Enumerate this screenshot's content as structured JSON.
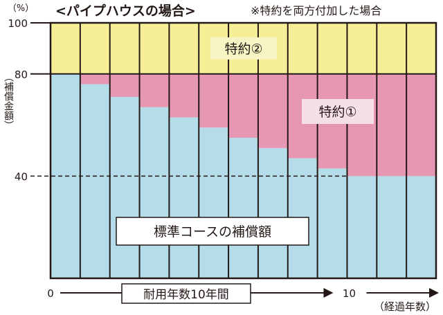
{
  "header": {
    "title": "<パイプハウスの場合>",
    "note": "※特約を両方付加した場合"
  },
  "colors": {
    "standard": "#b5dde9",
    "rider1": "#e597b4",
    "rider2": "#f6ef98",
    "rider1_label_bg": "#f6dfe8",
    "rider2_label_bg": "#f8f4c4",
    "line": "#231815"
  },
  "chart_data": {
    "type": "bar",
    "stacked": true,
    "x": [
      0,
      1,
      2,
      3,
      4,
      5,
      6,
      7,
      8,
      9,
      10,
      11,
      12
    ],
    "series": [
      {
        "name": "標準コースの補償額",
        "values": [
          80,
          76,
          71,
          67,
          63,
          59,
          55,
          51,
          47,
          43,
          40,
          40,
          40
        ]
      },
      {
        "name": "特約①",
        "values": [
          0,
          4,
          9,
          13,
          17,
          21,
          25,
          29,
          33,
          37,
          40,
          40,
          40
        ]
      },
      {
        "name": "特約②",
        "values": [
          20,
          20,
          20,
          20,
          20,
          20,
          20,
          20,
          20,
          20,
          20,
          20,
          20
        ]
      }
    ],
    "ylim": [
      0,
      100
    ],
    "yticks": [
      {
        "value": 40,
        "label": "40"
      },
      {
        "value": 80,
        "label": "80"
      },
      {
        "value": 100,
        "label": "100"
      }
    ],
    "ylabel": "（補償金額）",
    "yunit": "（%）",
    "xlabel": "（経過年数）",
    "xticks": [
      {
        "value": 0,
        "label": "0"
      },
      {
        "value": 10,
        "label": "10"
      }
    ],
    "annotations": {
      "lifetime": "耐用年数10年間",
      "rider1": "特約①",
      "rider2": "特約②",
      "standard": "標準コースの補償額"
    },
    "reference_line": 40
  }
}
